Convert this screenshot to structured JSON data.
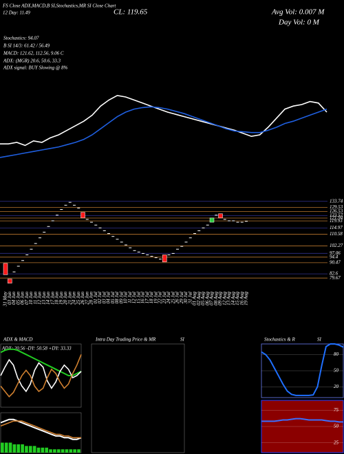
{
  "chart_data": [
    {
      "type": "line",
      "annotations": [
        "FS Close ADX,MACD,B SI,Stochastics,MR SI Close Chart",
        "12 Day: 11.49",
        "CL: 119.65",
        "Avg Vol: 0.007 M",
        "Day Vol: 0  M",
        "Stochastics: 94.07",
        "B SI 14/3: 61.42 / 56.49",
        "MACD: 121.62, 112.56, 9.06  C",
        "ADX:            (MGR) 20.6, 50.6, 33.3",
        "ADX  signal:                   BUY Slowing @ 8%"
      ],
      "ylim": [
        0,
        100
      ],
      "series": [
        {
          "color": "#ffffff",
          "values": [
            28,
            28,
            30,
            26,
            32,
            30,
            36,
            40,
            46,
            52,
            58,
            66,
            78,
            86,
            92,
            90,
            86,
            82,
            78,
            74,
            70,
            67,
            64,
            61,
            58,
            55,
            52,
            49,
            46,
            42,
            38,
            40,
            50,
            62,
            74,
            78,
            80,
            84,
            82,
            70
          ]
        },
        {
          "color": "#1f5fe0",
          "values": [
            10,
            12,
            14,
            16,
            18,
            20,
            22,
            24,
            27,
            30,
            34,
            40,
            48,
            56,
            64,
            70,
            74,
            76,
            77,
            76,
            74,
            71,
            68,
            64,
            60,
            56,
            52,
            48,
            45,
            44,
            43,
            43,
            46,
            50,
            55,
            58,
            62,
            66,
            70,
            74
          ]
        }
      ]
    },
    {
      "type": "candlestick",
      "grid_color": "#b8762e",
      "up_color": "#2ecc40",
      "down_color": "#ff1a1a",
      "categories": [
        "31 May",
        "03 Jun",
        "04 Jun",
        "05 Jun",
        "06 Jun",
        "07 Jun",
        "10 Jun",
        "11 Jun",
        "12 Jun",
        "13 Jun",
        "14 Jun",
        "17 Jun",
        "18 Jun",
        "19 Jun",
        "20 Jun",
        "21 Jun",
        "24 Jun",
        "25 Jun",
        "26 Jun",
        "27 Jun",
        "28 Jun",
        "01 Jul",
        "02 Jul",
        "03 Jul",
        "04 Jul",
        "05 Jul",
        "08 Jul",
        "09 Jul",
        "10 Jul",
        "11 Jul",
        "12 Jul",
        "15 Jul",
        "16 Jul",
        "17 Jul",
        "18 Jul",
        "19 Jul",
        "22 Jul",
        "23 Jul",
        "24 Jul",
        "25 Jul",
        "26 Jul",
        "29 Jul",
        "30 Jul",
        "31 Jul",
        "01 Aug",
        "02 Aug",
        "05 Aug",
        "06 Aug",
        "07 Aug",
        "08 Aug",
        "09 Aug",
        "12 Aug",
        "13 Aug",
        "14 Aug",
        "15 Aug",
        "16 Aug",
        "19 Aug"
      ],
      "open": [
        90,
        79,
        84,
        88,
        92,
        96,
        100,
        104,
        108,
        112,
        116,
        120,
        124,
        128,
        131,
        133,
        131,
        129,
        126,
        121,
        119,
        117,
        115,
        113,
        111,
        109,
        107,
        105,
        103,
        101,
        99,
        98,
        97,
        96,
        95,
        94,
        93,
        96,
        96,
        97,
        100,
        102,
        105,
        108,
        111,
        113,
        115,
        117,
        119,
        124,
        125,
        121,
        120,
        120,
        119,
        119,
        119.65
      ],
      "close": [
        82,
        76,
        84,
        88,
        92,
        96,
        100,
        104,
        108,
        112,
        116,
        120,
        124,
        128,
        131,
        133,
        131,
        129,
        122,
        121,
        119,
        117,
        115,
        113,
        111,
        109,
        107,
        105,
        103,
        101,
        99,
        98,
        97,
        96,
        95,
        94,
        93,
        91,
        96,
        97,
        100,
        102,
        105,
        108,
        111,
        113,
        115,
        117,
        122,
        124,
        122,
        121,
        120,
        120,
        119,
        119,
        119.65
      ],
      "ylim": [
        72,
        136
      ],
      "yticks": [
        79.67,
        82.6,
        90.47,
        94.4,
        97.06,
        102.27,
        110.58,
        114.97,
        119.93,
        121.94,
        123.57,
        126.53,
        129.53,
        133.74
      ]
    },
    {
      "type": "line",
      "title": "ADX  & MACD",
      "annotation": "ADX: 20.56  -DY: 50.58  +DY: 33.33",
      "ylim": [
        0,
        60
      ],
      "series": [
        {
          "color": "#22cc22",
          "values": [
            52,
            54,
            55,
            55,
            54,
            52,
            50,
            48,
            46,
            44,
            42,
            40,
            38,
            36,
            34,
            32,
            30,
            30,
            32,
            34
          ]
        },
        {
          "color": "#ffffff",
          "values": [
            30,
            38,
            45,
            40,
            28,
            20,
            15,
            22,
            35,
            42,
            38,
            25,
            18,
            24,
            34,
            40,
            36,
            28,
            30,
            34
          ]
        },
        {
          "color": "#d08030",
          "values": [
            20,
            15,
            10,
            14,
            22,
            30,
            35,
            30,
            20,
            15,
            18,
            28,
            36,
            32,
            24,
            18,
            22,
            32,
            40,
            50
          ]
        }
      ]
    },
    {
      "type": "macd",
      "ylim": [
        0,
        24
      ],
      "hist_color": "#22cc22",
      "histogram": [
        6,
        6,
        6,
        5,
        5,
        5,
        4,
        4,
        4,
        3,
        3,
        3,
        2,
        2,
        2,
        2,
        2,
        2,
        2,
        2
      ],
      "series": [
        {
          "color": "#ffffff",
          "values": [
            18,
            19,
            20,
            20,
            19,
            18,
            17,
            16,
            15,
            14,
            13,
            12,
            11,
            10,
            10,
            9,
            9,
            8,
            8,
            9
          ]
        },
        {
          "color": "#d08030",
          "values": [
            16,
            17,
            18,
            19,
            19,
            19,
            18,
            17,
            16,
            15,
            14,
            13,
            12,
            11,
            11,
            10,
            10,
            9,
            9,
            9
          ]
        }
      ]
    },
    {
      "type": "empty",
      "title": "Intra  Day Trading Price  & MR",
      "title2": "SI"
    },
    {
      "type": "line",
      "title": "Stochastics & R",
      "title2": "SI",
      "ylim": [
        0,
        100
      ],
      "yticks": [
        20,
        50,
        80
      ],
      "background": "#000000",
      "series": [
        {
          "color": "#1f6fff",
          "values": [
            85,
            80,
            70,
            55,
            40,
            25,
            12,
            6,
            4,
            4,
            4,
            4,
            5,
            20,
            60,
            95,
            100,
            100,
            98,
            94
          ]
        }
      ]
    },
    {
      "type": "line",
      "ylim": [
        10,
        90
      ],
      "yticks": [
        25,
        50,
        75
      ],
      "background": "#8b0000",
      "series": [
        {
          "color": "#3a6fff",
          "values": [
            58,
            58,
            58,
            58,
            59,
            60,
            60,
            61,
            62,
            62,
            61,
            60,
            60,
            60,
            60,
            59,
            58,
            58,
            57,
            57
          ]
        }
      ]
    }
  ]
}
